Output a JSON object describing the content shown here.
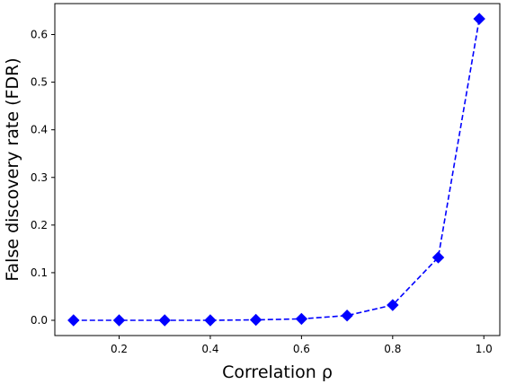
{
  "chart_data": {
    "type": "line",
    "title": "",
    "xlabel": "Correlation ρ",
    "ylabel": "False discovery rate (FDR)",
    "x": [
      0.1,
      0.2,
      0.3,
      0.4,
      0.5,
      0.6,
      0.7,
      0.8,
      0.9,
      0.99
    ],
    "series": [
      {
        "values": [
          0.0,
          0.0,
          0.0,
          0.0,
          0.001,
          0.003,
          0.01,
          0.032,
          0.132,
          0.633
        ],
        "color": "#0000ff",
        "line_style": "dashed",
        "marker": "diamond"
      }
    ],
    "xlim": [
      0.059,
      1.035
    ],
    "ylim": [
      -0.032,
      0.665
    ],
    "xticks": [
      0.2,
      0.4,
      0.6,
      0.8,
      1.0
    ],
    "xtick_labels": [
      "0.2",
      "0.4",
      "0.6",
      "0.8",
      "1.0"
    ],
    "yticks": [
      0.0,
      0.1,
      0.2,
      0.3,
      0.4,
      0.5,
      0.6
    ],
    "ytick_labels": [
      "0.0",
      "0.1",
      "0.2",
      "0.3",
      "0.4",
      "0.5",
      "0.6"
    ],
    "grid": false,
    "legend": "none"
  }
}
